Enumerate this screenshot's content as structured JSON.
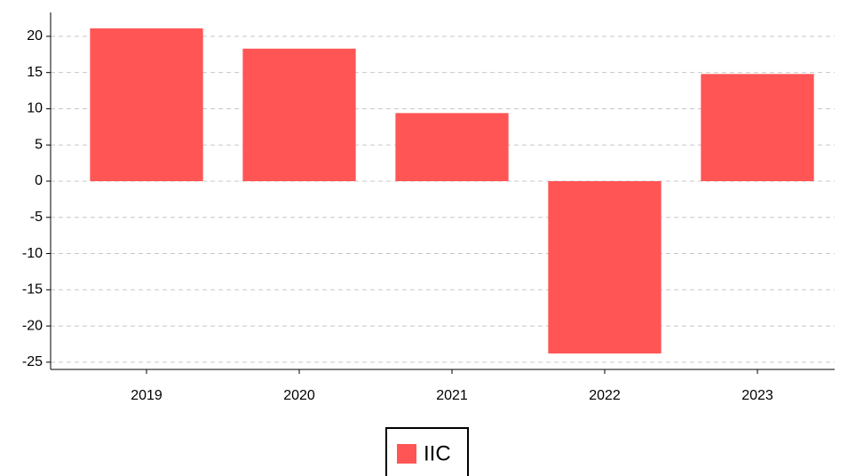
{
  "chart_data": {
    "type": "bar",
    "categories": [
      "2019",
      "2020",
      "2021",
      "2022",
      "2023"
    ],
    "series": [
      {
        "name": "IIC",
        "color": "#ff5555",
        "values": [
          21.1,
          18.3,
          9.4,
          -23.8,
          14.8
        ]
      }
    ],
    "ylim": [
      -26,
      23.3
    ],
    "yticks": [
      -25,
      -20,
      -15,
      -10,
      -5,
      0,
      5,
      10,
      15,
      20
    ],
    "grid": true,
    "legend": "bottom"
  }
}
